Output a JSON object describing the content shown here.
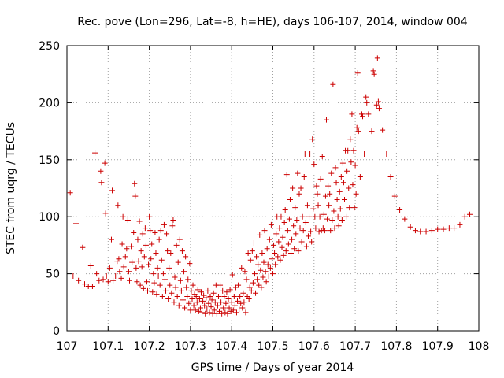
{
  "chart_data": {
    "type": "scatter",
    "title": "Rec. pove (Lon=296, Lat=-8, h=HE), days 106-107, 2014, window 004",
    "xlabel": "GPS time / Days of year 2014",
    "ylabel": "STEC from uqrg / TECUs",
    "xlim": [
      107,
      108
    ],
    "ylim": [
      0,
      250
    ],
    "x_ticks": [
      "107",
      "107.1",
      "107.2",
      "107.3",
      "107.4",
      "107.5",
      "107.6",
      "107.7",
      "107.8",
      "107.9",
      "108"
    ],
    "y_ticks": [
      "0",
      "50",
      "100",
      "150",
      "200",
      "250"
    ],
    "grid": true,
    "marker": "plus",
    "color": "#cc0000",
    "points": [
      [
        107.008,
        121
      ],
      [
        107.015,
        48
      ],
      [
        107.022,
        94
      ],
      [
        107.028,
        44
      ],
      [
        107.038,
        73
      ],
      [
        107.043,
        41
      ],
      [
        107.052,
        39
      ],
      [
        107.058,
        57
      ],
      [
        107.062,
        39
      ],
      [
        107.068,
        156
      ],
      [
        107.072,
        50
      ],
      [
        107.078,
        44
      ],
      [
        107.082,
        140
      ],
      [
        107.084,
        130
      ],
      [
        107.088,
        45
      ],
      [
        107.092,
        147
      ],
      [
        107.094,
        103
      ],
      [
        107.096,
        48
      ],
      [
        107.1,
        43
      ],
      [
        107.104,
        55
      ],
      [
        107.108,
        80
      ],
      [
        107.11,
        123
      ],
      [
        107.112,
        44
      ],
      [
        107.118,
        48
      ],
      [
        107.122,
        61
      ],
      [
        107.124,
        110
      ],
      [
        107.126,
        63
      ],
      [
        107.128,
        52
      ],
      [
        107.132,
        46
      ],
      [
        107.134,
        76
      ],
      [
        107.136,
        100
      ],
      [
        107.138,
        56
      ],
      [
        107.142,
        65
      ],
      [
        107.145,
        72
      ],
      [
        107.148,
        97
      ],
      [
        107.15,
        52
      ],
      [
        107.152,
        44
      ],
      [
        107.156,
        74
      ],
      [
        107.158,
        60
      ],
      [
        107.162,
        86
      ],
      [
        107.164,
        129
      ],
      [
        107.166,
        118
      ],
      [
        107.168,
        55
      ],
      [
        107.17,
        43
      ],
      [
        107.172,
        80
      ],
      [
        107.174,
        61
      ],
      [
        107.176,
        96
      ],
      [
        107.178,
        40
      ],
      [
        107.18,
        70
      ],
      [
        107.182,
        56
      ],
      [
        107.184,
        85
      ],
      [
        107.186,
        37
      ],
      [
        107.188,
        65
      ],
      [
        107.19,
        90
      ],
      [
        107.192,
        75
      ],
      [
        107.194,
        43
      ],
      [
        107.196,
        35
      ],
      [
        107.198,
        58
      ],
      [
        107.2,
        100
      ],
      [
        107.202,
        88
      ],
      [
        107.204,
        63
      ],
      [
        107.206,
        76
      ],
      [
        107.208,
        34
      ],
      [
        107.21,
        50
      ],
      [
        107.212,
        42
      ],
      [
        107.214,
        86
      ],
      [
        107.216,
        68
      ],
      [
        107.218,
        32
      ],
      [
        107.22,
        55
      ],
      [
        107.222,
        48
      ],
      [
        107.224,
        80
      ],
      [
        107.226,
        40
      ],
      [
        107.228,
        88
      ],
      [
        107.23,
        62
      ],
      [
        107.232,
        30
      ],
      [
        107.234,
        50
      ],
      [
        107.236,
        93
      ],
      [
        107.238,
        45
      ],
      [
        107.24,
        35
      ],
      [
        107.242,
        85
      ],
      [
        107.244,
        70
      ],
      [
        107.246,
        28
      ],
      [
        107.248,
        55
      ],
      [
        107.25,
        40
      ],
      [
        107.252,
        68
      ],
      [
        107.254,
        33
      ],
      [
        107.256,
        92
      ],
      [
        107.258,
        97
      ],
      [
        107.26,
        25
      ],
      [
        107.262,
        47
      ],
      [
        107.264,
        38
      ],
      [
        107.266,
        75
      ],
      [
        107.268,
        30
      ],
      [
        107.27,
        60
      ],
      [
        107.272,
        22
      ],
      [
        107.274,
        80
      ],
      [
        107.276,
        44
      ],
      [
        107.278,
        35
      ],
      [
        107.28,
        70
      ],
      [
        107.282,
        27
      ],
      [
        107.284,
        52
      ],
      [
        107.286,
        20
      ],
      [
        107.288,
        65
      ],
      [
        107.29,
        38
      ],
      [
        107.292,
        30
      ],
      [
        107.294,
        45
      ],
      [
        107.296,
        24
      ],
      [
        107.298,
        59
      ],
      [
        107.3,
        18
      ],
      [
        107.302,
        35
      ],
      [
        107.304,
        28
      ],
      [
        107.306,
        40
      ],
      [
        107.308,
        22
      ],
      [
        107.31,
        32
      ],
      [
        107.312,
        18
      ],
      [
        107.314,
        30
      ],
      [
        107.316,
        25
      ],
      [
        107.318,
        36
      ],
      [
        107.32,
        17
      ],
      [
        107.322,
        28
      ],
      [
        107.324,
        20
      ],
      [
        107.326,
        34
      ],
      [
        107.328,
        16
      ],
      [
        107.33,
        26
      ],
      [
        107.332,
        31
      ],
      [
        107.334,
        22
      ],
      [
        107.336,
        15
      ],
      [
        107.338,
        29
      ],
      [
        107.34,
        19
      ],
      [
        107.342,
        35
      ],
      [
        107.344,
        24
      ],
      [
        107.346,
        16
      ],
      [
        107.348,
        30
      ],
      [
        107.35,
        21
      ],
      [
        107.352,
        27
      ],
      [
        107.354,
        15
      ],
      [
        107.356,
        33
      ],
      [
        107.358,
        18
      ],
      [
        107.36,
        25
      ],
      [
        107.362,
        40
      ],
      [
        107.364,
        15
      ],
      [
        107.366,
        22
      ],
      [
        107.368,
        30
      ],
      [
        107.37,
        17
      ],
      [
        107.372,
        40
      ],
      [
        107.374,
        25
      ],
      [
        107.376,
        15
      ],
      [
        107.378,
        35
      ],
      [
        107.38,
        20
      ],
      [
        107.382,
        30
      ],
      [
        107.384,
        16
      ],
      [
        107.386,
        24
      ],
      [
        107.388,
        34
      ],
      [
        107.39,
        15
      ],
      [
        107.392,
        28
      ],
      [
        107.394,
        20
      ],
      [
        107.396,
        36
      ],
      [
        107.398,
        17
      ],
      [
        107.4,
        25
      ],
      [
        107.402,
        49
      ],
      [
        107.404,
        18
      ],
      [
        107.406,
        30
      ],
      [
        107.408,
        22
      ],
      [
        107.41,
        38
      ],
      [
        107.412,
        16
      ],
      [
        107.414,
        26
      ],
      [
        107.416,
        40
      ],
      [
        107.418,
        19
      ],
      [
        107.42,
        30
      ],
      [
        107.422,
        24
      ],
      [
        107.424,
        55
      ],
      [
        107.426,
        20
      ],
      [
        107.428,
        33
      ],
      [
        107.43,
        25
      ],
      [
        107.432,
        52
      ],
      [
        107.434,
        16
      ],
      [
        107.436,
        45
      ],
      [
        107.438,
        30
      ],
      [
        107.44,
        68
      ],
      [
        107.442,
        28
      ],
      [
        107.444,
        38
      ],
      [
        107.446,
        62
      ],
      [
        107.448,
        35
      ],
      [
        107.45,
        70
      ],
      [
        107.452,
        42
      ],
      [
        107.454,
        77
      ],
      [
        107.456,
        50
      ],
      [
        107.458,
        33
      ],
      [
        107.46,
        65
      ],
      [
        107.462,
        45
      ],
      [
        107.464,
        58
      ],
      [
        107.466,
        40
      ],
      [
        107.468,
        84
      ],
      [
        107.47,
        53
      ],
      [
        107.472,
        38
      ],
      [
        107.474,
        68
      ],
      [
        107.476,
        47
      ],
      [
        107.478,
        60
      ],
      [
        107.48,
        88
      ],
      [
        107.482,
        52
      ],
      [
        107.484,
        43
      ],
      [
        107.486,
        72
      ],
      [
        107.488,
        58
      ],
      [
        107.49,
        48
      ],
      [
        107.492,
        80
      ],
      [
        107.494,
        55
      ],
      [
        107.496,
        93
      ],
      [
        107.498,
        63
      ],
      [
        107.5,
        50
      ],
      [
        107.502,
        75
      ],
      [
        107.504,
        68
      ],
      [
        107.506,
        58
      ],
      [
        107.508,
        85
      ],
      [
        107.51,
        100
      ],
      [
        107.512,
        65
      ],
      [
        107.514,
        78
      ],
      [
        107.516,
        90
      ],
      [
        107.518,
        62
      ],
      [
        107.52,
        100
      ],
      [
        107.522,
        73
      ],
      [
        107.524,
        82
      ],
      [
        107.526,
        66
      ],
      [
        107.528,
        95
      ],
      [
        107.53,
        106
      ],
      [
        107.532,
        70
      ],
      [
        107.534,
        137
      ],
      [
        107.536,
        88
      ],
      [
        107.538,
        76
      ],
      [
        107.54,
        98
      ],
      [
        107.542,
        115
      ],
      [
        107.544,
        68
      ],
      [
        107.546,
        80
      ],
      [
        107.548,
        125
      ],
      [
        107.55,
        92
      ],
      [
        107.552,
        72
      ],
      [
        107.554,
        108
      ],
      [
        107.556,
        85
      ],
      [
        107.558,
        97
      ],
      [
        107.56,
        138
      ],
      [
        107.562,
        70
      ],
      [
        107.564,
        120
      ],
      [
        107.566,
        90
      ],
      [
        107.568,
        125
      ],
      [
        107.57,
        78
      ],
      [
        107.572,
        100
      ],
      [
        107.574,
        88
      ],
      [
        107.576,
        135
      ],
      [
        107.578,
        155
      ],
      [
        107.58,
        95
      ],
      [
        107.582,
        74
      ],
      [
        107.584,
        110
      ],
      [
        107.586,
        83
      ],
      [
        107.588,
        100
      ],
      [
        107.59,
        155
      ],
      [
        107.592,
        87
      ],
      [
        107.594,
        78
      ],
      [
        107.596,
        168
      ],
      [
        107.598,
        107
      ],
      [
        107.6,
        146
      ],
      [
        107.602,
        100
      ],
      [
        107.604,
        90
      ],
      [
        107.606,
        127
      ],
      [
        107.608,
        120
      ],
      [
        107.61,
        110
      ],
      [
        107.612,
        87
      ],
      [
        107.614,
        100
      ],
      [
        107.616,
        133
      ],
      [
        107.618,
        88
      ],
      [
        107.62,
        153
      ],
      [
        107.622,
        90
      ],
      [
        107.624,
        102
      ],
      [
        107.626,
        88
      ],
      [
        107.628,
        118
      ],
      [
        107.63,
        185
      ],
      [
        107.632,
        98
      ],
      [
        107.634,
        127
      ],
      [
        107.636,
        110
      ],
      [
        107.638,
        120
      ],
      [
        107.64,
        88
      ],
      [
        107.642,
        138
      ],
      [
        107.644,
        97
      ],
      [
        107.646,
        216
      ],
      [
        107.648,
        105
      ],
      [
        107.65,
        90
      ],
      [
        107.652,
        143
      ],
      [
        107.654,
        130
      ],
      [
        107.656,
        115
      ],
      [
        107.658,
        100
      ],
      [
        107.66,
        92
      ],
      [
        107.662,
        122
      ],
      [
        107.664,
        107
      ],
      [
        107.666,
        135
      ],
      [
        107.668,
        97
      ],
      [
        107.67,
        147
      ],
      [
        107.672,
        130
      ],
      [
        107.674,
        115
      ],
      [
        107.676,
        158
      ],
      [
        107.678,
        100
      ],
      [
        107.68,
        140
      ],
      [
        107.682,
        158
      ],
      [
        107.684,
        125
      ],
      [
        107.686,
        108
      ],
      [
        107.688,
        168
      ],
      [
        107.69,
        148
      ],
      [
        107.692,
        190
      ],
      [
        107.694,
        128
      ],
      [
        107.696,
        158
      ],
      [
        107.698,
        108
      ],
      [
        107.7,
        145
      ],
      [
        107.702,
        120
      ],
      [
        107.704,
        178
      ],
      [
        107.706,
        226
      ],
      [
        107.708,
        175
      ],
      [
        107.712,
        135
      ],
      [
        107.716,
        190
      ],
      [
        107.718,
        188
      ],
      [
        107.722,
        155
      ],
      [
        107.726,
        205
      ],
      [
        107.728,
        200
      ],
      [
        107.732,
        190
      ],
      [
        107.74,
        175
      ],
      [
        107.744,
        228
      ],
      [
        107.746,
        225
      ],
      [
        107.752,
        198
      ],
      [
        107.754,
        239
      ],
      [
        107.756,
        201
      ],
      [
        107.758,
        195
      ],
      [
        107.766,
        176
      ],
      [
        107.776,
        155
      ],
      [
        107.786,
        135
      ],
      [
        107.796,
        118
      ],
      [
        107.808,
        106
      ],
      [
        107.82,
        98
      ],
      [
        107.834,
        91
      ],
      [
        107.846,
        88
      ],
      [
        107.858,
        87
      ],
      [
        107.872,
        87
      ],
      [
        107.886,
        88
      ],
      [
        107.9,
        89
      ],
      [
        107.914,
        89
      ],
      [
        107.928,
        90
      ],
      [
        107.94,
        90
      ],
      [
        107.954,
        93
      ],
      [
        107.966,
        100
      ],
      [
        107.978,
        102
      ]
    ]
  }
}
